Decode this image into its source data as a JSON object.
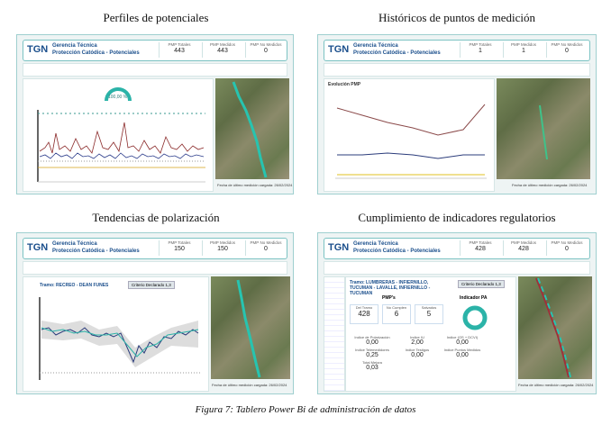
{
  "caption": "Figura 7: Tablero Power Bi de administración de datos",
  "panels": [
    {
      "heading": "Perfiles de potenciales",
      "logo": "TGN",
      "title": "Gerencia Técnica",
      "subtitle": "Protección Catódica - Potenciales",
      "kpis": [
        {
          "label": "PMP Totales",
          "value": 443
        },
        {
          "label": "PMP Medidos",
          "value": 443
        },
        {
          "label": "PMP No Medidos",
          "value": 0
        }
      ],
      "gauge": "100,00 %",
      "footer": "Fecha de último medición cargada: 26/02/2024"
    },
    {
      "heading": "Históricos de puntos de medición",
      "logo": "TGN",
      "title": "Gerencia Técnica",
      "subtitle": "Protección Catódica - Potenciales",
      "kpis": [
        {
          "label": "PMP Totales",
          "value": 1
        },
        {
          "label": "PMP Medidos",
          "value": 1
        },
        {
          "label": "PMP No Medidos",
          "value": 0
        }
      ],
      "chart_title": "Evolución PMP",
      "footer": "Fecha de último medición cargada: 26/02/2024"
    },
    {
      "heading": "Tendencias de polarización",
      "logo": "TGN",
      "title": "Gerencia Técnica",
      "subtitle": "Protección Catódica - Potenciales",
      "kpis": [
        {
          "label": "PMP Totales",
          "value": 150
        },
        {
          "label": "PMP Medidos",
          "value": 150
        },
        {
          "label": "PMP No Medidos",
          "value": 0
        }
      ],
      "tramo": "Tramo: RECREO - DEAN FUNES",
      "criterio": "Criterio Declarado 1,3",
      "footer": "Fecha de último medición cargada: 26/02/2024"
    },
    {
      "heading": "Cumplimiento de indicadores regulatorios",
      "logo": "TGN",
      "title": "Gerencia Técnica",
      "subtitle": "Protección Catódica - Potenciales",
      "kpis": [
        {
          "label": "PMP Totales",
          "value": 428
        },
        {
          "label": "PMP Medidos",
          "value": 428
        },
        {
          "label": "PMP No Medidos",
          "value": 0
        }
      ],
      "tramo": "Tramo: LUMBRERAS - INFIERNILLO, TUCUMAN - LAVALLE, INFIERNILLO - TUCUMAN",
      "criterio": "Criterio Declarado 1,3",
      "pmp_title": "PMP's",
      "counts": [
        {
          "label": "Del Tramo",
          "value": 428
        },
        {
          "label": "No Cumplen",
          "value": 6
        },
        {
          "label": "Salvados",
          "value": 5
        }
      ],
      "indicator_title": "Indicador PA",
      "indices": [
        {
          "label": "Indice de Polarización",
          "value": "0,00"
        },
        {
          "label": "Indice IU",
          "value": "2,00"
        },
        {
          "label": "Indice (OS + DCVI)",
          "value": "0,00"
        },
        {
          "label": "Indice Telemedidores",
          "value": "0,25"
        },
        {
          "label": "Indice Testigos",
          "value": "0,00"
        },
        {
          "label": "Indice Puntos Medidos",
          "value": "0,00"
        },
        {
          "label": "Total Mejora",
          "value": "0,03"
        }
      ],
      "footer": "Fecha de último medición cargada: 26/02/2024"
    }
  ]
}
